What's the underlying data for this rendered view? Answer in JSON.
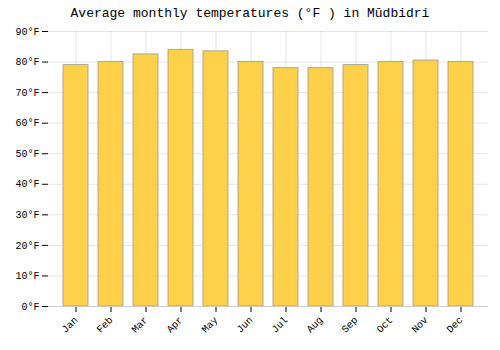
{
  "chart_data": {
    "type": "bar",
    "title": "Average monthly temperatures (°F ) in Mūdbidri",
    "categories": [
      "Jan",
      "Feb",
      "Mar",
      "Apr",
      "May",
      "Jun",
      "Jul",
      "Aug",
      "Sep",
      "Oct",
      "Nov",
      "Dec"
    ],
    "values": [
      79,
      80,
      82.5,
      84,
      83.5,
      80,
      78,
      78,
      79,
      80,
      80.5,
      80
    ],
    "color": "#FFD04A",
    "ylim": [
      0,
      90
    ],
    "yticks": [
      {
        "value": 0,
        "label": "0°F"
      },
      {
        "value": 10,
        "label": "10°F"
      },
      {
        "value": 20,
        "label": "20°F"
      },
      {
        "value": 30,
        "label": "30°F"
      },
      {
        "value": 40,
        "label": "40°F"
      },
      {
        "value": 50,
        "label": "50°F"
      },
      {
        "value": 60,
        "label": "60°F"
      },
      {
        "value": 70,
        "label": "70°F"
      },
      {
        "value": 80,
        "label": "80°F"
      },
      {
        "value": 90,
        "label": "90°F"
      }
    ],
    "grid": true
  }
}
